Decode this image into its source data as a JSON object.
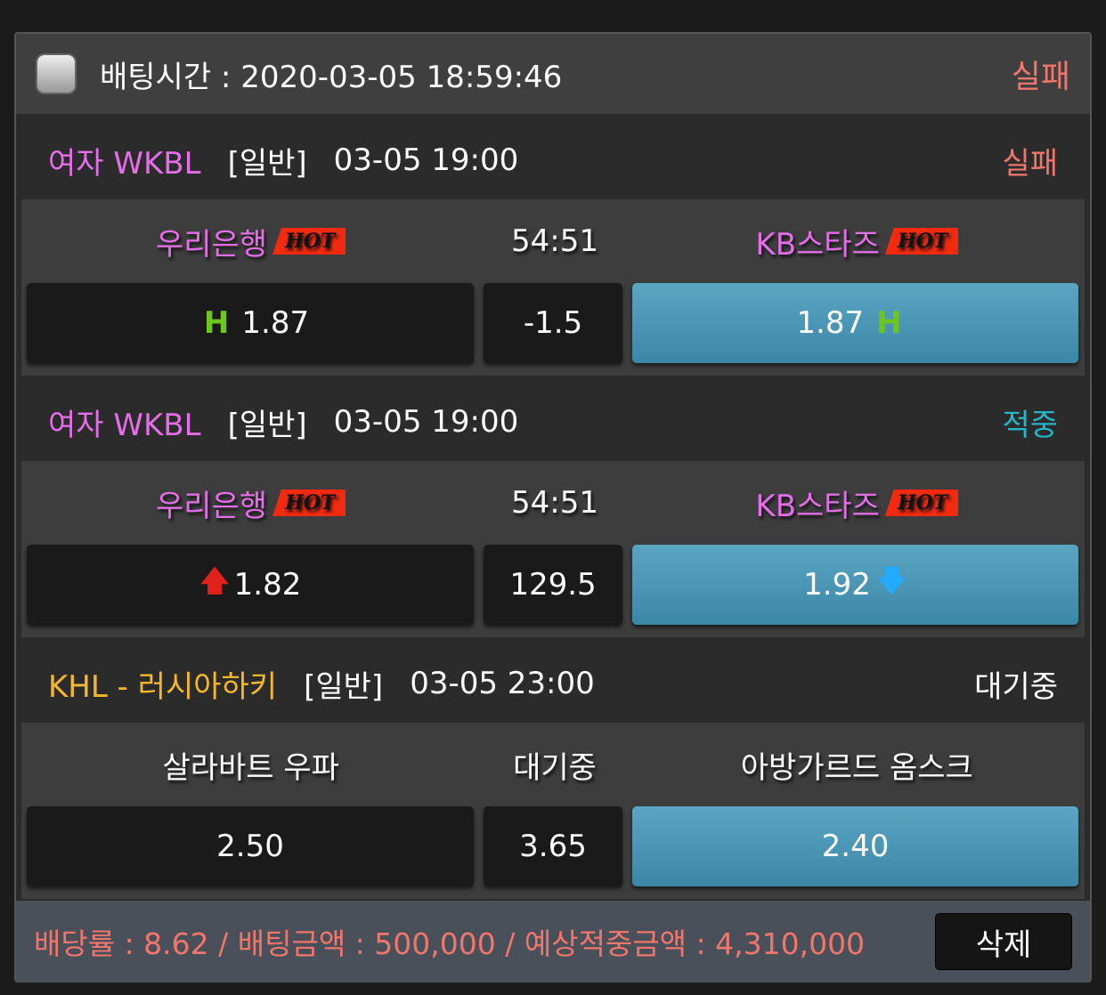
{
  "header": {
    "text": "배팅시간 : 2020-03-05 18:59:46",
    "status": "실패"
  },
  "bets": [
    {
      "league": "여자 WKBL",
      "league_color": "#e36ee8",
      "type": "[일반]",
      "time": "03-05 19:00",
      "status": "실패",
      "status_color": "#f0766c",
      "home": "우리은행",
      "away": "KB스타즈",
      "hot": "HOT",
      "middle": "54:51",
      "home_odds": "1.87",
      "line": "-1.5",
      "away_odds": "1.87",
      "marker": "H"
    },
    {
      "league": "여자 WKBL",
      "league_color": "#e36ee8",
      "type": "[일반]",
      "time": "03-05 19:00",
      "status": "적중",
      "status_color": "#25b5c8",
      "home": "우리은행",
      "away": "KB스타즈",
      "hot": "HOT",
      "middle": "54:51",
      "home_odds": "1.82",
      "line": "129.5",
      "away_odds": "1.92",
      "up_icon": "arrow-up",
      "down_icon": "arrow-down"
    },
    {
      "league": "KHL - 러시아하키",
      "league_color": "#f5b82a",
      "type": "[일반]",
      "time": "03-05 23:00",
      "status": "대기중",
      "status_color": "#ffffff",
      "home": "살라바트 우파",
      "away": "아방가르드 옴스크",
      "middle": "대기중",
      "home_odds": "2.50",
      "line": "3.65",
      "away_odds": "2.40"
    }
  ],
  "footer": {
    "summary": "배당률 : 8.62 / 배팅금액 : 500,000 / 예상적중금액 : 4,310,000",
    "delete_label": "삭제"
  }
}
